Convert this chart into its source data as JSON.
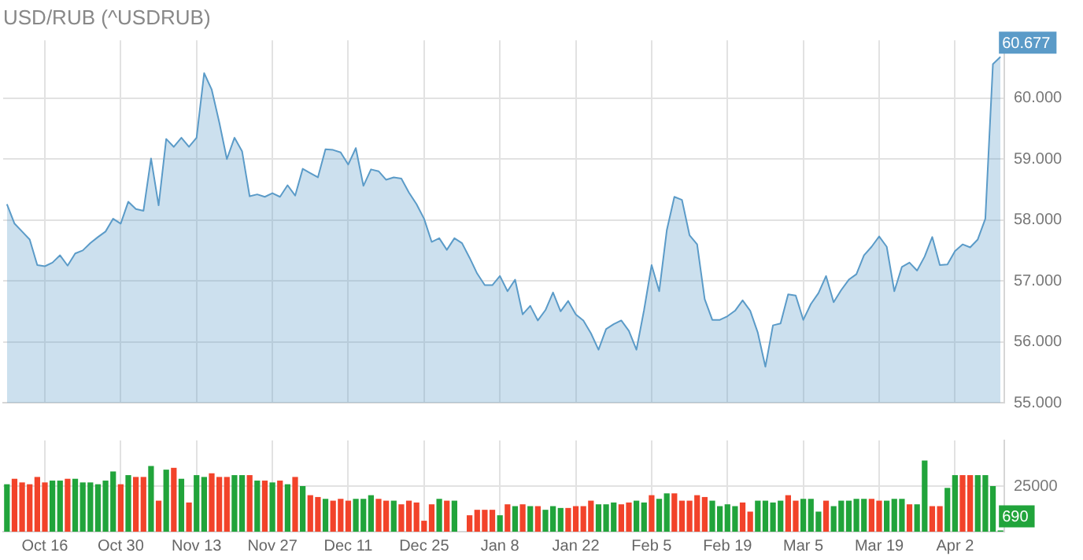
{
  "chart_data": [
    {
      "type": "area",
      "title": "USD/RUB (^USDRUB)",
      "categories": [
        null,
        null,
        null,
        null,
        null,
        null,
        null,
        null,
        null,
        null,
        null,
        null,
        null,
        null,
        null,
        null,
        null,
        null,
        null,
        null,
        null,
        null,
        null,
        null,
        null,
        null,
        null,
        null,
        null,
        null,
        null,
        null,
        null,
        null,
        null,
        null,
        null,
        null,
        null,
        null,
        null,
        null,
        null,
        null,
        null,
        null,
        null,
        null,
        null,
        null,
        null,
        null,
        null,
        null,
        null,
        null,
        null,
        null,
        null,
        null,
        null,
        null,
        null,
        null,
        null,
        null,
        null,
        null,
        null,
        null,
        null,
        null,
        null,
        null,
        null,
        null,
        null,
        null,
        null,
        null,
        null,
        null,
        null,
        null,
        null,
        null,
        null,
        null,
        null,
        null,
        null,
        null,
        null,
        null,
        null,
        null,
        null,
        null,
        null,
        null,
        null,
        null,
        null,
        null,
        null,
        null,
        null,
        null,
        null,
        null,
        null,
        null,
        null,
        null,
        null,
        null,
        null,
        null,
        null,
        null,
        null,
        null,
        null,
        null,
        null,
        null,
        null,
        null,
        null,
        null,
        null,
        null
      ],
      "values": [
        58.26,
        57.94,
        57.81,
        57.68,
        57.26,
        57.24,
        57.3,
        57.42,
        57.25,
        57.45,
        57.5,
        57.62,
        57.72,
        57.81,
        58.02,
        57.94,
        58.3,
        58.18,
        58.15,
        59.01,
        58.24,
        59.33,
        59.2,
        59.35,
        59.2,
        59.35,
        60.41,
        60.14,
        59.6,
        59.0,
        59.35,
        59.13,
        58.39,
        58.42,
        58.38,
        58.44,
        58.38,
        58.57,
        58.4,
        58.84,
        58.77,
        58.7,
        59.16,
        59.15,
        59.11,
        58.91,
        59.18,
        58.56,
        58.83,
        58.8,
        58.66,
        58.7,
        58.68,
        58.45,
        58.26,
        58.02,
        57.64,
        57.7,
        57.51,
        57.7,
        57.62,
        57.38,
        57.12,
        56.93,
        56.93,
        57.08,
        56.83,
        57.02,
        56.45,
        56.59,
        56.35,
        56.52,
        56.81,
        56.5,
        56.67,
        56.45,
        56.35,
        56.14,
        55.87,
        56.21,
        56.29,
        56.35,
        56.18,
        55.87,
        56.52,
        57.26,
        56.83,
        57.83,
        58.38,
        58.33,
        57.75,
        57.6,
        56.7,
        56.36,
        56.36,
        56.42,
        56.51,
        56.68,
        56.51,
        56.15,
        55.59,
        56.27,
        56.3,
        56.78,
        56.76,
        56.36,
        56.62,
        56.8,
        57.08,
        56.65,
        56.85,
        57.02,
        57.11,
        57.42,
        57.56,
        57.73,
        57.56,
        56.83,
        57.23,
        57.3,
        57.17,
        57.4,
        57.72,
        57.26,
        57.27,
        57.49,
        57.6,
        57.55,
        57.68,
        58.02,
        60.56,
        60.677
      ],
      "value_labels": [
        null,
        null,
        null,
        null,
        null,
        null,
        null,
        null,
        null,
        null,
        null,
        null,
        null,
        null,
        null,
        null,
        null,
        null,
        null,
        null,
        null,
        null,
        null,
        null,
        null,
        null,
        null,
        null,
        null,
        null,
        null,
        null,
        null,
        null,
        null,
        null,
        null,
        null,
        null,
        null,
        null,
        null,
        null,
        null,
        null,
        null,
        null,
        null,
        null,
        null,
        null,
        null,
        null,
        null,
        null,
        null,
        null,
        null,
        null,
        null,
        null,
        null,
        null,
        null,
        null,
        null,
        null,
        null,
        null,
        null,
        null,
        null,
        null,
        null,
        null,
        null,
        null,
        null,
        null,
        null,
        null,
        null,
        null,
        null,
        null,
        null,
        null,
        null,
        null,
        null,
        null,
        null,
        null,
        null,
        null,
        null,
        null,
        null,
        null,
        null,
        null,
        null,
        null,
        null,
        null,
        null,
        null,
        null,
        null,
        null,
        null,
        null,
        null,
        null,
        null,
        null,
        null,
        null,
        null,
        null,
        null,
        null,
        null,
        null,
        null,
        null,
        null,
        null,
        null,
        null,
        null,
        "60.677"
      ],
      "color": "#5b9bc8",
      "ylim": [
        55,
        60.95
      ],
      "yticks": [
        {
          "value": 55,
          "label": "55.000"
        },
        {
          "value": 56,
          "label": "56.000"
        },
        {
          "value": 57,
          "label": "57.000"
        },
        {
          "value": 58,
          "label": "58.000"
        },
        {
          "value": 59,
          "label": "59.000"
        },
        {
          "value": 60,
          "label": "60.000"
        }
      ],
      "grid": true,
      "tick_labels": "y"
    },
    {
      "type": "bar",
      "categories": [
        null,
        null,
        null,
        null,
        null,
        "Oct 16",
        null,
        null,
        null,
        null,
        null,
        null,
        null,
        null,
        null,
        "Oct 30",
        null,
        null,
        null,
        null,
        null,
        null,
        null,
        null,
        null,
        "Nov 13",
        null,
        null,
        null,
        null,
        null,
        null,
        null,
        null,
        null,
        "Nov 27",
        null,
        null,
        null,
        null,
        null,
        null,
        null,
        null,
        null,
        "Dec 11",
        null,
        null,
        null,
        null,
        null,
        null,
        null,
        null,
        null,
        "Dec 25",
        null,
        null,
        null,
        null,
        null,
        null,
        null,
        null,
        null,
        "Jan 8",
        null,
        null,
        null,
        null,
        null,
        null,
        null,
        null,
        null,
        "Jan 22",
        null,
        null,
        null,
        null,
        null,
        null,
        null,
        null,
        null,
        "Feb 5",
        null,
        null,
        null,
        null,
        null,
        null,
        null,
        null,
        null,
        "Feb 19",
        null,
        null,
        null,
        null,
        null,
        null,
        null,
        null,
        null,
        "Mar 5",
        null,
        null,
        null,
        null,
        null,
        null,
        null,
        null,
        null,
        "Mar 19",
        null,
        null,
        null,
        null,
        null,
        null,
        null,
        null,
        null,
        "Apr 2",
        null,
        null,
        null,
        null,
        null,
        null
      ],
      "values": [
        26000,
        29000,
        27000,
        26000,
        30000,
        27000,
        28000,
        28000,
        29000,
        29000,
        27000,
        27000,
        26000,
        28000,
        33000,
        26000,
        31000,
        30000,
        30000,
        36000,
        17000,
        34000,
        35000,
        29000,
        16000,
        31000,
        30000,
        32000,
        30000,
        30000,
        31000,
        31000,
        31000,
        28000,
        28000,
        27000,
        28000,
        26000,
        30000,
        25000,
        20000,
        19000,
        18000,
        17000,
        18000,
        17000,
        18000,
        18000,
        20000,
        18000,
        17000,
        17000,
        15000,
        17000,
        16000,
        6000,
        15000,
        18000,
        17000,
        17000,
        null,
        9000,
        12000,
        12000,
        12000,
        9000,
        15000,
        14000,
        15000,
        14000,
        14000,
        12000,
        14000,
        13000,
        13000,
        14000,
        14000,
        17000,
        15000,
        15000,
        16000,
        15000,
        16000,
        17000,
        16000,
        20000,
        18000,
        21000,
        21000,
        17000,
        17000,
        20000,
        19000,
        17000,
        14000,
        15000,
        14000,
        16000,
        11000,
        17000,
        17000,
        16000,
        17000,
        20000,
        17000,
        18000,
        18000,
        11000,
        17000,
        14000,
        17000,
        17000,
        18000,
        18000,
        18000,
        17000,
        17000,
        18000,
        18000,
        15000,
        15000,
        39000,
        14000,
        14000,
        24000,
        31000,
        31000,
        31000,
        31000,
        31000,
        25000,
        690
      ],
      "colors": [
        "#21a43b",
        "#f2432a",
        "#f2432a",
        "#f2432a",
        "#f2432a",
        "#f2432a",
        "#21a43b",
        "#21a43b",
        "#f2432a",
        "#21a43b",
        "#21a43b",
        "#21a43b",
        "#21a43b",
        "#21a43b",
        "#21a43b",
        "#f2432a",
        "#21a43b",
        "#f2432a",
        "#f2432a",
        "#21a43b",
        "#f2432a",
        "#21a43b",
        "#f2432a",
        "#21a43b",
        "#f2432a",
        "#21a43b",
        "#21a43b",
        "#f2432a",
        "#f2432a",
        "#f2432a",
        "#21a43b",
        "#21a43b",
        "#f2432a",
        "#21a43b",
        "#f2432a",
        "#21a43b",
        "#f2432a",
        "#21a43b",
        "#f2432a",
        "#21a43b",
        "#f2432a",
        "#f2432a",
        "#21a43b",
        "#f2432a",
        "#f2432a",
        "#f2432a",
        "#21a43b",
        "#21a43b",
        "#21a43b",
        "#f2432a",
        "#f2432a",
        "#21a43b",
        "#f2432a",
        "#f2432a",
        "#f2432a",
        "#f2432a",
        "#f2432a",
        "#21a43b",
        "#f2432a",
        "#21a43b",
        "#21a43b",
        "#f2432a",
        "#f2432a",
        "#f2432a",
        "#f2432a",
        "#21a43b",
        "#f2432a",
        "#21a43b",
        "#f2432a",
        "#21a43b",
        "#f2432a",
        "#21a43b",
        "#21a43b",
        "#21a43b",
        "#f2432a",
        "#f2432a",
        "#f2432a",
        "#f2432a",
        "#21a43b",
        "#21a43b",
        "#21a43b",
        "#f2432a",
        "#f2432a",
        "#21a43b",
        "#21a43b",
        "#f2432a",
        "#21a43b",
        "#21a43b",
        "#f2432a",
        "#f2432a",
        "#f2432a",
        "#f2432a",
        "#f2432a",
        "#21a43b",
        "#21a43b",
        "#21a43b",
        "#21a43b",
        "#f2432a",
        "#f2432a",
        "#21a43b",
        "#21a43b",
        "#21a43b",
        "#21a43b",
        "#f2432a",
        "#f2432a",
        "#21a43b",
        "#21a43b",
        "#21a43b",
        "#f2432a",
        "#21a43b",
        "#21a43b",
        "#21a43b",
        "#21a43b",
        "#21a43b",
        "#f2432a",
        "#f2432a",
        "#21a43b",
        "#21a43b",
        "#21a43b",
        "#f2432a",
        "#21a43b",
        "#21a43b",
        "#f2432a",
        "#f2432a",
        "#21a43b",
        "#21a43b",
        "#f2432a",
        "#f2432a",
        "#21a43b",
        "#21a43b",
        "#21a43b",
        "#21a43b"
      ],
      "value_labels": [
        null,
        null,
        null,
        null,
        null,
        null,
        null,
        null,
        null,
        null,
        null,
        null,
        null,
        null,
        null,
        null,
        null,
        null,
        null,
        null,
        null,
        null,
        null,
        null,
        null,
        null,
        null,
        null,
        null,
        null,
        null,
        null,
        null,
        null,
        null,
        null,
        null,
        null,
        null,
        null,
        null,
        null,
        null,
        null,
        null,
        null,
        null,
        null,
        null,
        null,
        null,
        null,
        null,
        null,
        null,
        null,
        null,
        null,
        null,
        null,
        null,
        null,
        null,
        null,
        null,
        null,
        null,
        null,
        null,
        null,
        null,
        null,
        null,
        null,
        null,
        null,
        null,
        null,
        null,
        null,
        null,
        null,
        null,
        null,
        null,
        null,
        null,
        null,
        null,
        null,
        null,
        null,
        null,
        null,
        null,
        null,
        null,
        null,
        null,
        null,
        null,
        null,
        null,
        null,
        null,
        null,
        null,
        null,
        null,
        null,
        null,
        null,
        null,
        null,
        null,
        null,
        null,
        null,
        null,
        null,
        null,
        null,
        null,
        null,
        null,
        null,
        null,
        null,
        null,
        null,
        null,
        "690"
      ],
      "ylim": [
        0,
        50000
      ],
      "yticks": [
        {
          "value": 0,
          "label": null
        },
        25000
      ],
      "grid": true
    }
  ]
}
